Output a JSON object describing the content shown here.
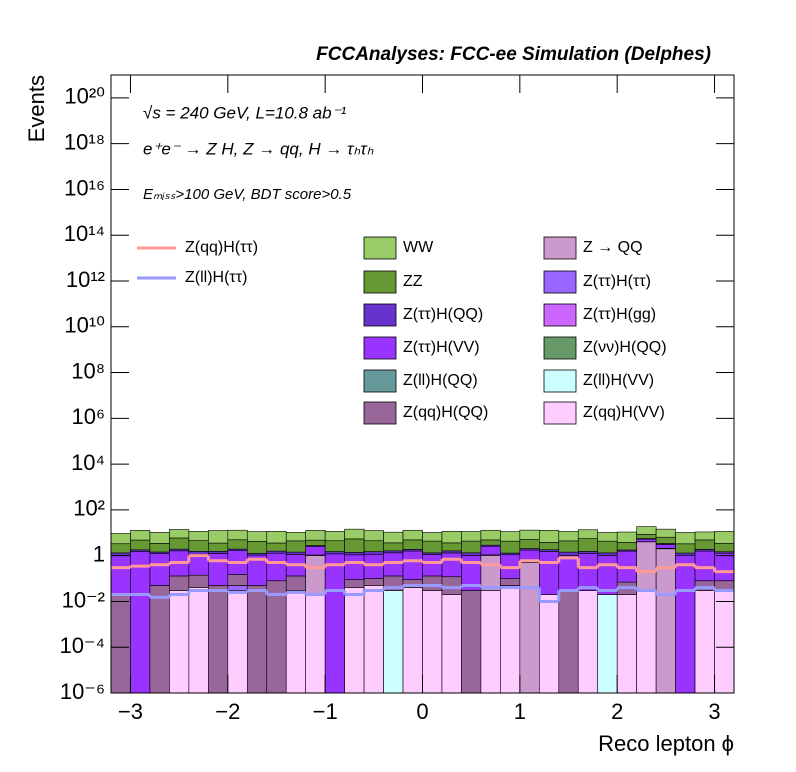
{
  "chart_data": {
    "type": "stacked-histogram",
    "title": "FCCAnalyses: FCC-ee Simulation (Delphes)",
    "annotations": [
      "√s = 240 GeV, L=10.8 ab⁻¹",
      "e⁺e⁻ → Z H, Z → qq, H → τₕτₕ",
      "Eₘᵢₛₛ>100 GeV, BDT score>0.5"
    ],
    "x_label": "Reco lepton ϕ",
    "y_label": "Events",
    "yscale": "log",
    "xlim": [
      -3.2,
      3.2
    ],
    "ylim": [
      1e-06,
      1e+21
    ],
    "xticks": [
      {
        "value": -3,
        "label": "−3"
      },
      {
        "value": -2,
        "label": "−2"
      },
      {
        "value": -1,
        "label": "−1"
      },
      0,
      1,
      2,
      3
    ],
    "yticks": [
      {
        "value": 1e-06,
        "label": "10⁻⁶"
      },
      {
        "value": 0.0001,
        "label": "10⁻⁴"
      },
      {
        "value": 0.01,
        "label": "10⁻²"
      },
      1,
      {
        "value": 100,
        "label": "10²"
      },
      {
        "value": 10000,
        "label": "10⁴"
      },
      {
        "value": 1000000.0,
        "label": "10⁶"
      },
      {
        "value": 100000000.0,
        "label": "10⁸"
      },
      {
        "value": 10000000000.0,
        "label": "10¹⁰"
      },
      {
        "value": 1000000000000.0,
        "label": "10¹²"
      },
      {
        "value": 100000000000000.0,
        "label": "10¹⁴"
      },
      {
        "value": 1e+16,
        "label": "10¹⁶"
      },
      {
        "value": 1e+18,
        "label": "10¹⁸"
      },
      {
        "value": 1e+20,
        "label": "10²⁰"
      }
    ],
    "bins": [
      -3.2,
      -3.0,
      -2.8,
      -2.6,
      -2.4,
      -2.2,
      -2.0,
      -1.8,
      -1.6,
      -1.4,
      -1.2,
      -1.0,
      -0.8,
      -0.6,
      -0.4,
      -0.2,
      0,
      0.2,
      0.4,
      0.6,
      0.8,
      1.0,
      1.2,
      1.4,
      1.6,
      1.8,
      2.0,
      2.2,
      2.4,
      2.6,
      2.8,
      3.0,
      3.2
    ],
    "series": [
      {
        "name": "WW",
        "color": "#99cc66",
        "values": [
          6,
          8,
          7,
          8,
          7,
          9,
          8,
          7,
          8,
          6,
          8,
          7,
          9,
          8,
          7,
          8,
          6,
          8,
          7,
          8,
          7,
          8,
          9,
          7,
          8,
          6,
          7,
          10,
          8,
          7,
          6,
          8
        ]
      },
      {
        "name": "ZZ",
        "color": "#669933",
        "values": [
          2,
          3,
          2,
          4,
          3,
          2,
          3,
          3,
          2,
          3,
          2,
          3,
          4,
          3,
          2,
          3,
          3,
          2,
          3,
          2,
          3,
          3,
          2,
          3,
          4,
          3,
          2,
          3,
          3,
          2,
          3,
          2
        ]
      },
      {
        "name": "Z(ττ)H(QQ)",
        "color": "#6633cc",
        "values": [
          0.3,
          0.3,
          0.2,
          0.3,
          0.4,
          0.3,
          0.3,
          0.2,
          0.3,
          0.3,
          0.2,
          0.3,
          0.3,
          0.4,
          0.3,
          0.3,
          0.2,
          0.3,
          0.3,
          0.3,
          0.2,
          0.3,
          0.3,
          0.4,
          0.3,
          0.3,
          0.2,
          0.3,
          0.3,
          0.3,
          0.3,
          0.2
        ]
      },
      {
        "name": "Z(ττ)H(VV)",
        "color": "#9933ff",
        "values": [
          1,
          1.5,
          1.2,
          1.5,
          1,
          1.2,
          1.5,
          1,
          1.2,
          1,
          1.5,
          1.2,
          1,
          1,
          1.2,
          1.5,
          1,
          1.2,
          1,
          1.5,
          1,
          1.2,
          1.5,
          1,
          1.2,
          1,
          1.5,
          1.2,
          1,
          1,
          1.5,
          1.2
        ]
      },
      {
        "name": "Z(ll)H(QQ)",
        "color": "#669999",
        "values": [
          0,
          0,
          1e-05,
          0,
          0,
          0,
          0,
          0,
          0,
          0,
          0,
          0,
          0,
          0,
          0,
          0,
          0,
          0,
          0,
          0,
          0,
          0,
          0,
          0,
          0,
          0,
          0,
          0,
          0,
          0,
          0,
          0
        ]
      },
      {
        "name": "Z(qq)H(QQ)",
        "color": "#996699",
        "values": [
          0.02,
          0,
          0.05,
          0.1,
          0.1,
          0.05,
          0.1,
          0.05,
          0.08,
          0.1,
          0.05,
          0,
          0.05,
          0.05,
          0.1,
          0.05,
          0.1,
          0.1,
          0.03,
          0.05,
          0.05,
          0.05,
          0,
          0.03,
          0,
          0,
          0.05,
          0.05,
          0.1,
          0,
          0.05,
          0.05
        ]
      },
      {
        "name": "Z → QQ",
        "color": "#cc99cc",
        "values": [
          0,
          0,
          0,
          0,
          0,
          0,
          0,
          0,
          0,
          0,
          1,
          0,
          0,
          0,
          0,
          0,
          0,
          0,
          0,
          1,
          0,
          0.5,
          0,
          0,
          0,
          0,
          0,
          4,
          2,
          0,
          0,
          0
        ]
      },
      {
        "name": "Z(ττ)H(ττ)",
        "color": "#9966ff",
        "values": [
          0,
          0,
          0,
          0,
          0,
          0,
          0.02,
          0,
          0,
          0,
          0,
          0,
          0,
          0,
          0,
          0,
          0,
          0,
          0,
          0,
          0,
          0,
          0,
          0,
          0,
          0,
          0,
          0,
          0,
          0,
          0,
          0
        ]
      },
      {
        "name": "Z(ττ)H(gg)",
        "color": "#cc66ff",
        "values": [
          0,
          0,
          0,
          0,
          0,
          0,
          0,
          0,
          0,
          0,
          0,
          0,
          0,
          0,
          0,
          0,
          0,
          0,
          0,
          0,
          0.01,
          0,
          0,
          0,
          0,
          0,
          0,
          0,
          0,
          0,
          0,
          0
        ]
      },
      {
        "name": "Z(νν)H(QQ)",
        "color": "#669966",
        "values": [
          0,
          0,
          0,
          0,
          0,
          0,
          0,
          0,
          0,
          0,
          0,
          0,
          0,
          0,
          0,
          1e-05,
          0,
          0,
          0,
          0,
          0,
          0,
          0,
          0,
          0,
          0,
          0,
          0,
          0,
          0,
          0,
          0
        ]
      },
      {
        "name": "Z(ll)H(VV)",
        "color": "#ccffff",
        "values": [
          0,
          0,
          0,
          0,
          0,
          0,
          0,
          0,
          0,
          0,
          0,
          0,
          0,
          0,
          0.03,
          0,
          0,
          0,
          0,
          0,
          0,
          0,
          0,
          0,
          0,
          0.02,
          0,
          0,
          0,
          0,
          0,
          0
        ]
      },
      {
        "name": "Z(qq)H(VV)",
        "color": "#ffccff",
        "values": [
          0,
          0,
          0,
          0.03,
          0.04,
          0,
          0.03,
          0,
          0,
          0.03,
          0.02,
          0,
          0.04,
          0.05,
          0,
          0.04,
          0.03,
          0.02,
          0,
          0.03,
          0.04,
          0,
          0.02,
          0,
          0.03,
          0,
          0.02,
          0.03,
          0,
          0,
          0.03,
          0.03
        ]
      }
    ],
    "overlay": [
      {
        "name": "Z(qq)H(ττ)",
        "color": "#ff9999",
        "values": [
          0.3,
          0.35,
          0.4,
          0.5,
          1,
          0.6,
          0.5,
          0.7,
          0.5,
          0.4,
          0.3,
          0.4,
          0.5,
          0.4,
          0.5,
          0.6,
          0.5,
          0.7,
          0.5,
          0.4,
          0.3,
          0.6,
          0.5,
          0.8,
          0.3,
          0.4,
          0.3,
          0.2,
          0.3,
          0.4,
          0.3,
          0.2
        ]
      },
      {
        "name": "Z(ll)H(ττ)",
        "color": "#9999ff",
        "values": [
          0.02,
          0.02,
          0.015,
          0.02,
          0.03,
          0.03,
          0.025,
          0.03,
          0.02,
          0.025,
          0.02,
          0.03,
          0.02,
          0.03,
          0.04,
          0.05,
          0.05,
          0.04,
          0.05,
          0.04,
          0.04,
          0.04,
          0.01,
          0.03,
          0.04,
          0.03,
          0.04,
          0.03,
          0.02,
          0.03,
          0.04,
          0.03
        ]
      }
    ]
  }
}
